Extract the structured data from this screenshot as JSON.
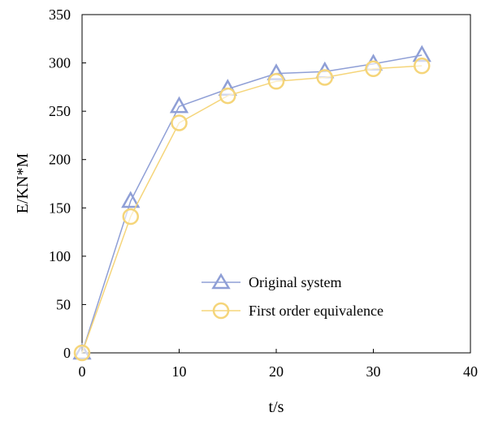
{
  "chart_data": {
    "type": "line",
    "xlabel": "t/s",
    "ylabel": "E/KN*M",
    "xlim": [
      0,
      40
    ],
    "ylim": [
      0,
      350
    ],
    "x_ticks": [
      0,
      10,
      20,
      30,
      40
    ],
    "y_ticks": [
      0,
      50,
      100,
      150,
      200,
      250,
      300,
      350
    ],
    "grid": false,
    "legend_position": "bottom-right",
    "x": [
      0,
      5,
      10,
      15,
      20,
      25,
      30,
      35
    ],
    "series": [
      {
        "name": "Original system",
        "marker": "triangle",
        "color": "#8f9fd6",
        "values": [
          0,
          157,
          255,
          273,
          289,
          291,
          299,
          308
        ]
      },
      {
        "name": "First order equivalence",
        "marker": "circle",
        "color": "#f5d57a",
        "values": [
          0,
          141,
          238,
          266,
          281,
          285,
          294,
          297
        ]
      }
    ]
  }
}
